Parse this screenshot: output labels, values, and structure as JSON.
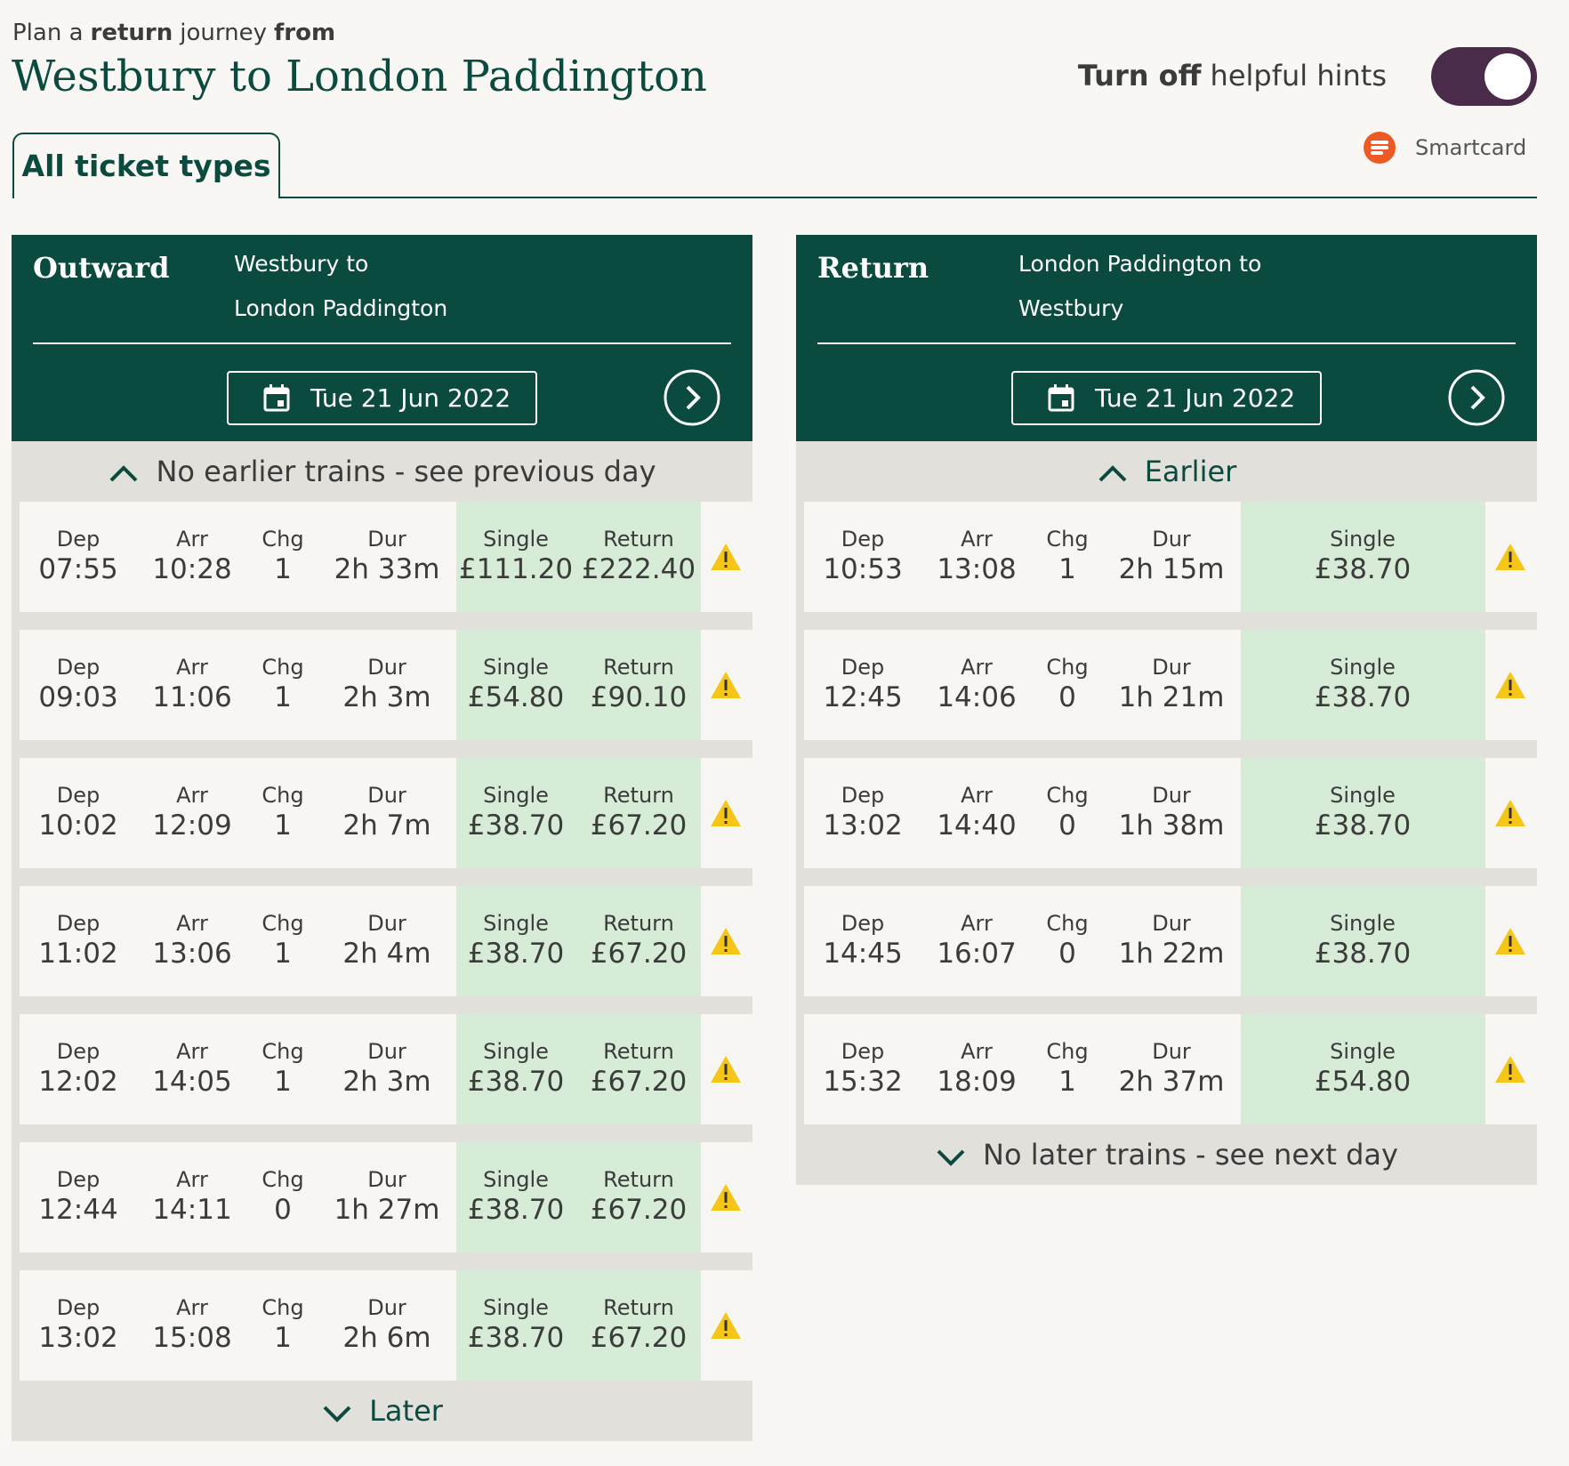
{
  "header": {
    "intro": [
      {
        "text": "Plan a",
        "bold": false
      },
      {
        "text": "return",
        "bold": true
      },
      {
        "text": "journey",
        "bold": false
      },
      {
        "text": "from",
        "bold": true
      }
    ],
    "title": "Westbury to London Paddington",
    "hints": [
      {
        "text": "Turn off",
        "bold": true
      },
      {
        "text": "helpful hints",
        "bold": false
      }
    ],
    "hints_toggle_on": true,
    "smartcard": "Smartcard",
    "tab": "All ticket types"
  },
  "panels": [
    {
      "label": "Outward",
      "route": [
        "Westbury to",
        "London Paddington"
      ],
      "date": "Tue 21 Jun 2022",
      "earlier": "No earlier trains - see previous day",
      "later": "Later",
      "headers": {
        "dep": "Dep",
        "arr": "Arr",
        "chg": "Chg",
        "dur": "Dur",
        "single": "Single",
        "return": "Return"
      },
      "rows": [
        {
          "dep": "07:55",
          "arr": "10:28",
          "chg": 1,
          "dur": "2h 33m",
          "single": "£111.20",
          "return": "£222.40"
        },
        {
          "dep": "09:03",
          "arr": "11:06",
          "chg": 1,
          "dur": "2h 3m",
          "single": "£54.80",
          "return": "£90.10"
        },
        {
          "dep": "10:02",
          "arr": "12:09",
          "chg": 1,
          "dur": "2h 7m",
          "single": "£38.70",
          "return": "£67.20"
        },
        {
          "dep": "11:02",
          "arr": "13:06",
          "chg": 1,
          "dur": "2h 4m",
          "single": "£38.70",
          "return": "£67.20"
        },
        {
          "dep": "12:02",
          "arr": "14:05",
          "chg": 1,
          "dur": "2h 3m",
          "single": "£38.70",
          "return": "£67.20"
        },
        {
          "dep": "12:44",
          "arr": "14:11",
          "chg": 0,
          "dur": "1h 27m",
          "single": "£38.70",
          "return": "£67.20"
        },
        {
          "dep": "13:02",
          "arr": "15:08",
          "chg": 1,
          "dur": "2h 6m",
          "single": "£38.70",
          "return": "£67.20"
        }
      ]
    },
    {
      "label": "Return",
      "route": [
        "London Paddington to",
        "Westbury"
      ],
      "date": "Tue 21 Jun 2022",
      "earlier": "Earlier",
      "later": "No later trains - see next day",
      "headers": {
        "dep": "Dep",
        "arr": "Arr",
        "chg": "Chg",
        "dur": "Dur",
        "single": "Single"
      },
      "rows": [
        {
          "dep": "10:53",
          "arr": "13:08",
          "chg": 1,
          "dur": "2h 15m",
          "single": "£38.70"
        },
        {
          "dep": "12:45",
          "arr": "14:06",
          "chg": 0,
          "dur": "1h 21m",
          "single": "£38.70"
        },
        {
          "dep": "13:02",
          "arr": "14:40",
          "chg": 0,
          "dur": "1h 38m",
          "single": "£38.70"
        },
        {
          "dep": "14:45",
          "arr": "16:07",
          "chg": 0,
          "dur": "1h 22m",
          "single": "£38.70"
        },
        {
          "dep": "15:32",
          "arr": "18:09",
          "chg": 1,
          "dur": "2h 37m",
          "single": "£54.80"
        }
      ]
    }
  ]
}
